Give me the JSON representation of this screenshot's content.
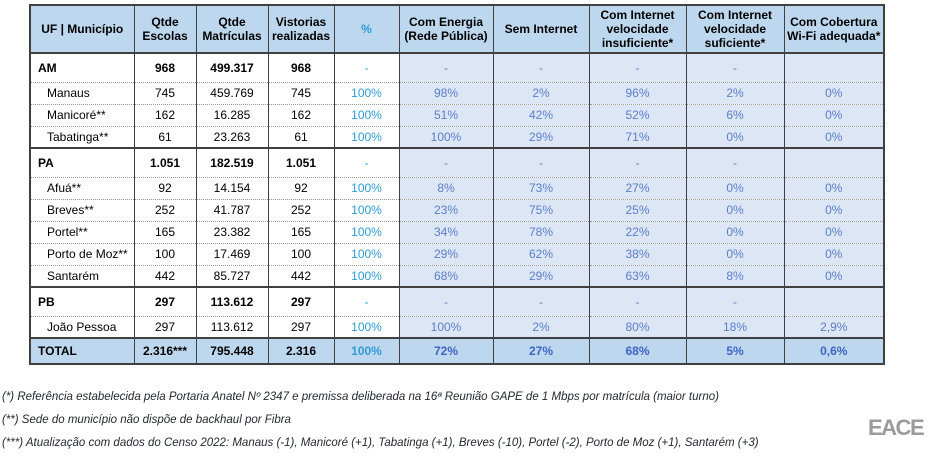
{
  "table": {
    "columns": [
      {
        "label": "UF | Município"
      },
      {
        "label": "Qtde Escolas"
      },
      {
        "label": "Qtde Matrículas"
      },
      {
        "label": "Vistorias realizadas"
      },
      {
        "label": "%"
      },
      {
        "label": "Com Energia (Rede Pública)"
      },
      {
        "label": "Sem Internet"
      },
      {
        "label": "Com Internet velocidade insuficiente*"
      },
      {
        "label": "Com Internet velocidade suficiente*"
      },
      {
        "label": "Com Cobertura Wi-Fi adequada*"
      }
    ],
    "rows": [
      {
        "label": "AM",
        "type": "state",
        "section_start": true,
        "values": [
          "968",
          "499.317",
          "968",
          "-",
          "-",
          "-",
          "-",
          "-",
          ""
        ]
      },
      {
        "label": "Manaus",
        "type": "muni",
        "section_start": false,
        "values": [
          "745",
          "459.769",
          "745",
          "100%",
          "98%",
          "2%",
          "96%",
          "2%",
          "0%"
        ]
      },
      {
        "label": "Manicoré**",
        "type": "muni",
        "section_start": false,
        "values": [
          "162",
          "16.285",
          "162",
          "100%",
          "51%",
          "42%",
          "52%",
          "6%",
          "0%"
        ]
      },
      {
        "label": "Tabatinga**",
        "type": "muni",
        "section_start": false,
        "values": [
          "61",
          "23.263",
          "61",
          "100%",
          "100%",
          "29%",
          "71%",
          "0%",
          "0%"
        ]
      },
      {
        "label": "PA",
        "type": "state",
        "section_start": true,
        "values": [
          "1.051",
          "182.519",
          "1.051",
          "-",
          "-",
          "-",
          "-",
          "-",
          ""
        ]
      },
      {
        "label": "Afuá**",
        "type": "muni",
        "section_start": false,
        "values": [
          "92",
          "14.154",
          "92",
          "100%",
          "8%",
          "73%",
          "27%",
          "0%",
          "0%"
        ]
      },
      {
        "label": "Breves**",
        "type": "muni",
        "section_start": false,
        "values": [
          "252",
          "41.787",
          "252",
          "100%",
          "23%",
          "75%",
          "25%",
          "0%",
          "0%"
        ]
      },
      {
        "label": "Portel**",
        "type": "muni",
        "section_start": false,
        "values": [
          "165",
          "23.382",
          "165",
          "100%",
          "34%",
          "78%",
          "22%",
          "0%",
          "0%"
        ]
      },
      {
        "label": "Porto de Moz**",
        "type": "muni",
        "section_start": false,
        "values": [
          "100",
          "17.469",
          "100",
          "100%",
          "29%",
          "62%",
          "38%",
          "0%",
          "0%"
        ]
      },
      {
        "label": "Santarém",
        "type": "muni",
        "section_start": false,
        "values": [
          "442",
          "85.727",
          "442",
          "100%",
          "68%",
          "29%",
          "63%",
          "8%",
          "0%"
        ]
      },
      {
        "label": "PB",
        "type": "state",
        "section_start": true,
        "values": [
          "297",
          "113.612",
          "297",
          "-",
          "-",
          "-",
          "-",
          "-",
          ""
        ]
      },
      {
        "label": "João Pessoa",
        "type": "muni",
        "section_start": false,
        "values": [
          "297",
          "113.612",
          "297",
          "100%",
          "100%",
          "2%",
          "80%",
          "18%",
          "2,9%"
        ]
      },
      {
        "label": "TOTAL",
        "type": "total",
        "section_start": true,
        "values": [
          "2.316***",
          "795.448",
          "2.316",
          "100%",
          "72%",
          "27%",
          "68%",
          "5%",
          "0,6%"
        ]
      }
    ]
  },
  "footnotes": [
    "(*) Referência estabelecida pela Portaria Anatel Nº 2347  e premissa deliberada na 16ª  Reunião GAPE de 1 Mbps por matrícula (maior turno)",
    "(**) Sede do município não dispõe de backhaul por Fibra",
    "(***) Atualização com dados do Censo 2022:  Manaus (-1), Manicoré (+1), Tabatinga (+1), Breves (-10), Portel (-2), Porto de Moz (+1), Santarém (+3)"
  ],
  "logo": {
    "text": "EACE"
  },
  "colors": {
    "header_bg": "#BDD7EE",
    "shaded_column_bg": "#DCE6F4",
    "total_row_bg": "#BDD7EE",
    "percent_text": "#2E9BD5",
    "shaded_value_text": "#5B7EC9",
    "total_value_text": "#3F63C1",
    "table_border": "#404040",
    "logo_gray": "#9B9B9B"
  }
}
